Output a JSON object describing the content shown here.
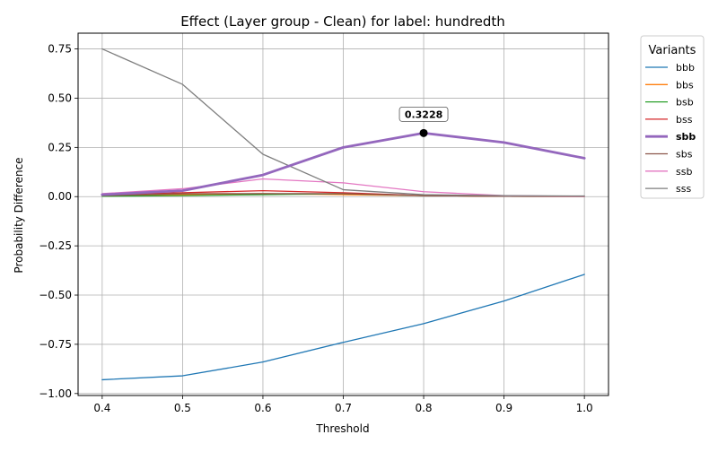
{
  "chart_data": {
    "type": "line",
    "title": "Effect (Layer group - Clean) for label: hundredth",
    "xlabel": "Threshold",
    "ylabel": "Probability Difference",
    "xlim": [
      0.37,
      1.03
    ],
    "ylim": [
      -1.01,
      0.83
    ],
    "x_ticks": [
      0.4,
      0.5,
      0.6,
      0.7,
      0.8,
      0.9,
      1.0
    ],
    "x_tick_labels": [
      "0.4",
      "0.5",
      "0.6",
      "0.7",
      "0.8",
      "0.9",
      "1.0"
    ],
    "y_ticks": [
      -1.0,
      -0.75,
      -0.5,
      -0.25,
      0.0,
      0.25,
      0.5,
      0.75
    ],
    "y_tick_labels": [
      "−1.00",
      "−0.75",
      "−0.50",
      "−0.25",
      "0.00",
      "0.25",
      "0.50",
      "0.75"
    ],
    "grid": true,
    "x": [
      0.4,
      0.5,
      0.6,
      0.7,
      0.8,
      0.9,
      1.0
    ],
    "legend": {
      "title": "Variants",
      "placement": "outside-right"
    },
    "series": [
      {
        "name": "bbb",
        "color": "#1f77b4",
        "highlight": false,
        "values": [
          -0.93,
          -0.91,
          -0.84,
          -0.74,
          -0.645,
          -0.53,
          -0.395
        ]
      },
      {
        "name": "bbs",
        "color": "#ff7f0e",
        "highlight": false,
        "values": [
          0.005,
          0.01,
          0.015,
          0.01,
          0.005,
          0.002,
          0.001
        ]
      },
      {
        "name": "bsb",
        "color": "#2ca02c",
        "highlight": false,
        "values": [
          0.002,
          0.005,
          0.01,
          0.015,
          0.005,
          0.002,
          0.001
        ]
      },
      {
        "name": "bss",
        "color": "#d62728",
        "highlight": false,
        "values": [
          0.01,
          0.02,
          0.03,
          0.02,
          0.005,
          0.002,
          0.001
        ]
      },
      {
        "name": "sbb",
        "color": "#9467bd",
        "highlight": true,
        "values": [
          0.01,
          0.03,
          0.11,
          0.25,
          0.3228,
          0.275,
          0.195
        ]
      },
      {
        "name": "sbs",
        "color": "#8c564b",
        "highlight": false,
        "values": [
          0.005,
          0.015,
          0.015,
          0.015,
          0.005,
          0.002,
          0.001
        ]
      },
      {
        "name": "ssb",
        "color": "#e377c2",
        "highlight": false,
        "values": [
          0.015,
          0.04,
          0.09,
          0.07,
          0.025,
          0.005,
          0.001
        ]
      },
      {
        "name": "sss",
        "color": "#7f7f7f",
        "highlight": false,
        "values": [
          0.75,
          0.57,
          0.215,
          0.035,
          0.01,
          0.005,
          0.003
        ]
      }
    ],
    "annotations": [
      {
        "series": "sbb",
        "x": 0.8,
        "y": 0.3228,
        "text": "0.3228"
      }
    ]
  }
}
